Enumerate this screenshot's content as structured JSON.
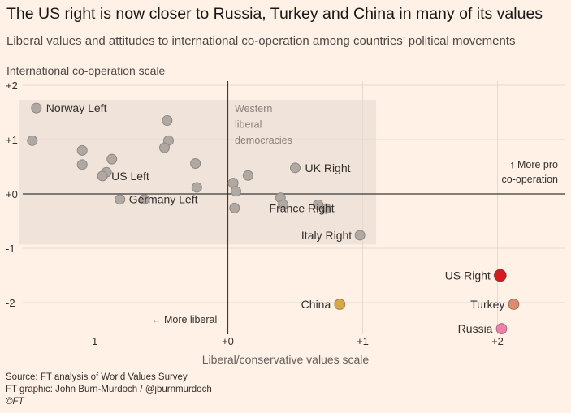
{
  "title": "The US right is now closer to Russia, Turkey and China in many of its values",
  "subtitle": "Liberal values and attitudes to international co-operation among countries’ political movements",
  "footer": {
    "source": "Source: FT analysis of World Values Survey",
    "graphic": "FT graphic: John Burn-Murdoch / @jburnmurdoch",
    "copyright": "©FT"
  },
  "colors": {
    "background": "#fff1e5",
    "region": "#f0e3d9",
    "grey_point": "#b0a8a3",
    "us_right": "#d71920",
    "turkey": "#e08b6f",
    "russia": "#f07fab",
    "china": "#d8a740"
  },
  "chart_data": {
    "type": "scatter",
    "xlabel": "Liberal/conservative values scale",
    "ylabel": "International co-operation scale",
    "xlim": [
      -1.7,
      2.5
    ],
    "ylim": [
      -2.5,
      2
    ],
    "x_ticks": [
      {
        "value": -1,
        "label": "-1"
      },
      {
        "value": 0,
        "label": "+0"
      },
      {
        "value": 1,
        "label": "+1"
      },
      {
        "value": 2,
        "label": "+2"
      }
    ],
    "y_ticks": [
      {
        "value": 2,
        "label": "+2"
      },
      {
        "value": 1,
        "label": "+1"
      },
      {
        "value": 0,
        "label": "+0"
      },
      {
        "value": -1,
        "label": "-1"
      },
      {
        "value": -2,
        "label": "-2"
      }
    ],
    "grid": true,
    "region": {
      "label": [
        "Western",
        "liberal",
        "democracies"
      ],
      "x": [
        -1.55,
        1.1
      ],
      "y": [
        -0.93,
        1.73
      ]
    },
    "annotations": {
      "more_pro": [
        "↑ More pro",
        "co-operation"
      ],
      "more_liberal": "← More liberal"
    },
    "points": [
      {
        "x": -1.42,
        "y": 1.58,
        "label": "Norway Left",
        "color": "grey"
      },
      {
        "x": -1.45,
        "y": 0.98,
        "label": "",
        "color": "grey"
      },
      {
        "x": -0.45,
        "y": 1.35,
        "label": "",
        "color": "grey"
      },
      {
        "x": -0.44,
        "y": 0.98,
        "label": "",
        "color": "grey"
      },
      {
        "x": -0.47,
        "y": 0.85,
        "label": "",
        "color": "grey"
      },
      {
        "x": -1.08,
        "y": 0.8,
        "label": "",
        "color": "grey"
      },
      {
        "x": -1.08,
        "y": 0.54,
        "label": "",
        "color": "grey"
      },
      {
        "x": -0.86,
        "y": 0.64,
        "label": "",
        "color": "grey"
      },
      {
        "x": -0.9,
        "y": 0.4,
        "label": "",
        "color": "grey"
      },
      {
        "x": -0.93,
        "y": 0.33,
        "label": "US Left",
        "color": "grey"
      },
      {
        "x": -0.8,
        "y": -0.1,
        "label": "Germany Left",
        "color": "grey"
      },
      {
        "x": -0.62,
        "y": -0.1,
        "label": "",
        "color": "grey"
      },
      {
        "x": -0.24,
        "y": 0.56,
        "label": "",
        "color": "grey"
      },
      {
        "x": -0.23,
        "y": 0.12,
        "label": "",
        "color": "grey"
      },
      {
        "x": 0.04,
        "y": 0.2,
        "label": "",
        "color": "grey"
      },
      {
        "x": 0.06,
        "y": 0.05,
        "label": "",
        "color": "grey"
      },
      {
        "x": 0.05,
        "y": -0.26,
        "label": "",
        "color": "grey"
      },
      {
        "x": 0.15,
        "y": 0.34,
        "label": "",
        "color": "grey"
      },
      {
        "x": 0.5,
        "y": 0.48,
        "label": "UK Right",
        "color": "grey"
      },
      {
        "x": 0.39,
        "y": -0.07,
        "label": "",
        "color": "grey"
      },
      {
        "x": 0.41,
        "y": -0.2,
        "label": "France Right",
        "color": "grey"
      },
      {
        "x": 0.67,
        "y": -0.2,
        "label": "",
        "color": "grey"
      },
      {
        "x": 0.73,
        "y": -0.27,
        "label": "",
        "color": "grey"
      },
      {
        "x": 0.98,
        "y": -0.76,
        "label": "Italy Right",
        "color": "grey"
      },
      {
        "x": 2.02,
        "y": -1.5,
        "label": "US Right",
        "color": "us_right"
      },
      {
        "x": 0.83,
        "y": -2.03,
        "label": "China",
        "color": "china"
      },
      {
        "x": 2.12,
        "y": -2.03,
        "label": "Turkey",
        "color": "turkey"
      },
      {
        "x": 2.03,
        "y": -2.48,
        "label": "Russia",
        "color": "russia"
      }
    ]
  }
}
